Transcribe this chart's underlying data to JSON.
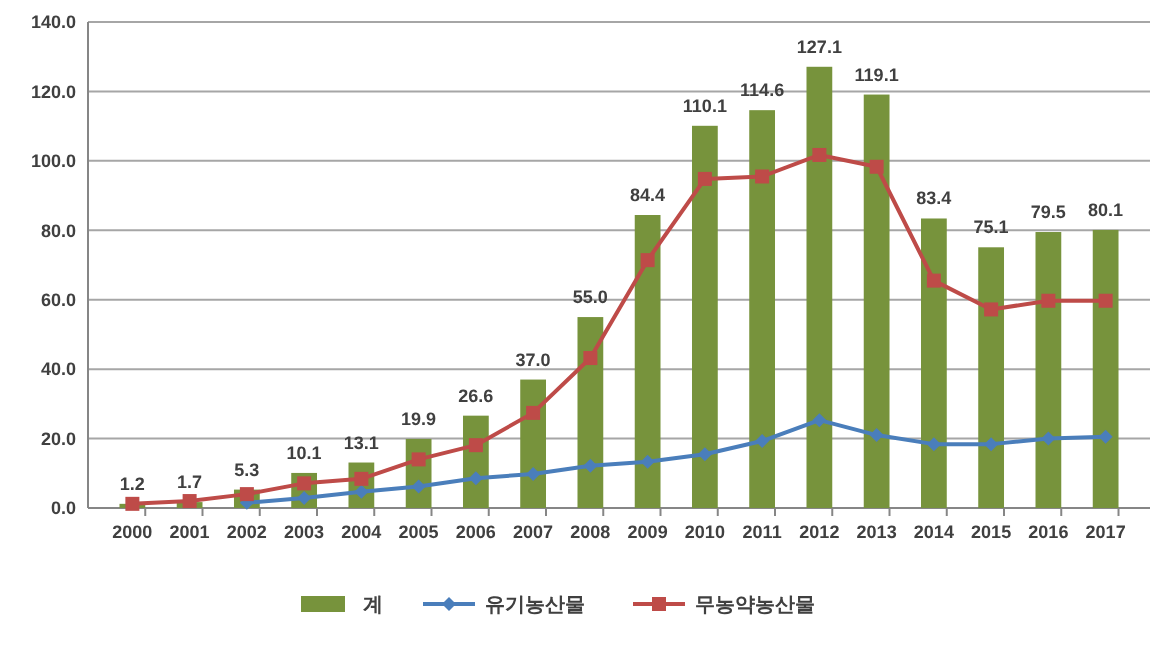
{
  "chart_data": {
    "type": "bar",
    "categories": [
      "2000",
      "2001",
      "2002",
      "2003",
      "2004",
      "2005",
      "2006",
      "2007",
      "2008",
      "2009",
      "2010",
      "2011",
      "2012",
      "2013",
      "2014",
      "2015",
      "2016",
      "2017"
    ],
    "series": [
      {
        "name": "계",
        "color": "#77933c",
        "values": [
          1.2,
          1.7,
          5.3,
          10.1,
          13.1,
          19.9,
          26.6,
          37.0,
          55.0,
          84.4,
          110.1,
          114.6,
          127.1,
          119.1,
          83.4,
          75.1,
          79.5,
          80.1
        ],
        "value_labels": [
          "1.2",
          "1.7",
          "5.3",
          "10.1",
          "13.1",
          "19.9",
          "26.6",
          "37.0",
          "55.0",
          "84.4",
          "110.1",
          "114.6",
          "127.1",
          "119.1",
          "83.4",
          "75.1",
          "79.5",
          "80.1"
        ]
      },
      {
        "name": "유기농산물",
        "type": "line",
        "color": "#4a7ebb",
        "marker": "diamond",
        "values": [
          null,
          null,
          1.5,
          2.9,
          4.7,
          6.2,
          8.6,
          9.8,
          12.2,
          13.3,
          15.5,
          19.3,
          25.3,
          21.0,
          18.4,
          18.4,
          20.0,
          20.5
        ]
      },
      {
        "name": "무농약농산물",
        "type": "line",
        "color": "#be4b48",
        "marker": "square",
        "values": [
          1.2,
          2.0,
          4.0,
          7.1,
          8.4,
          14.0,
          18.1,
          27.4,
          43.2,
          71.4,
          94.8,
          95.5,
          101.7,
          98.3,
          65.5,
          57.2,
          59.7,
          59.7
        ]
      }
    ],
    "ylim": [
      0,
      140
    ],
    "yticks": [
      {
        "value": 0,
        "label": "0.0"
      },
      {
        "value": 20,
        "label": "20.0"
      },
      {
        "value": 40,
        "label": "40.0"
      },
      {
        "value": 60,
        "label": "60.0"
      },
      {
        "value": 80,
        "label": "80.0"
      },
      {
        "value": 100,
        "label": "100.0"
      },
      {
        "value": 120,
        "label": "120.0"
      },
      {
        "value": 140,
        "label": "140.0"
      }
    ],
    "grid": "y",
    "legend": "bottom"
  }
}
